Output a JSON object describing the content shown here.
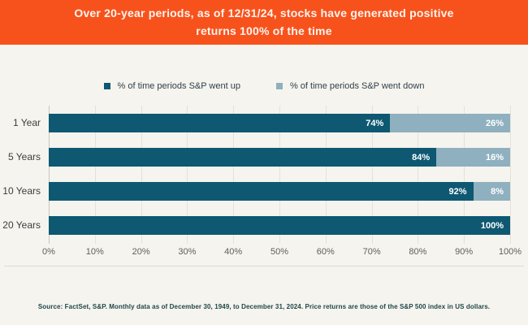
{
  "header": {
    "title": "Over 20-year periods, as of 12/31/24, stocks have generated positive returns 100% of the time",
    "bg_color": "#f8521c",
    "text_color": "#fbf4ee"
  },
  "legend": [
    {
      "label": "% of time periods S&P went up",
      "color": "#0e5872"
    },
    {
      "label": "% of time periods S&P went down",
      "color": "#8fb0bf"
    }
  ],
  "chart_data": {
    "type": "bar",
    "orientation": "horizontal",
    "stacked": true,
    "categories": [
      "1 Year",
      "5 Years",
      "10 Years",
      "20 Years"
    ],
    "series": [
      {
        "name": "% of time periods S&P went up",
        "color": "#0e5872",
        "values": [
          74,
          84,
          92,
          100
        ],
        "labels": [
          "74%",
          "84%",
          "92%",
          "100%"
        ]
      },
      {
        "name": "% of time periods S&P went down",
        "color": "#8fb0bf",
        "values": [
          26,
          16,
          8,
          0
        ],
        "labels": [
          "26%",
          "16%",
          "8%",
          ""
        ]
      }
    ],
    "x_ticks": [
      "0%",
      "10%",
      "20%",
      "30%",
      "40%",
      "50%",
      "60%",
      "70%",
      "80%",
      "90%",
      "100%"
    ],
    "xlim": [
      0,
      100
    ],
    "grid": true,
    "legend_position": "top",
    "title": "Over 20-year periods, as of 12/31/24, stocks have generated positive returns 100% of the time"
  },
  "footer": {
    "source": "Source: FactSet, S&P. Monthly data as of December 30, 1949, to December 31, 2024. Price returns are those of the S&P 500 index in US dollars."
  }
}
